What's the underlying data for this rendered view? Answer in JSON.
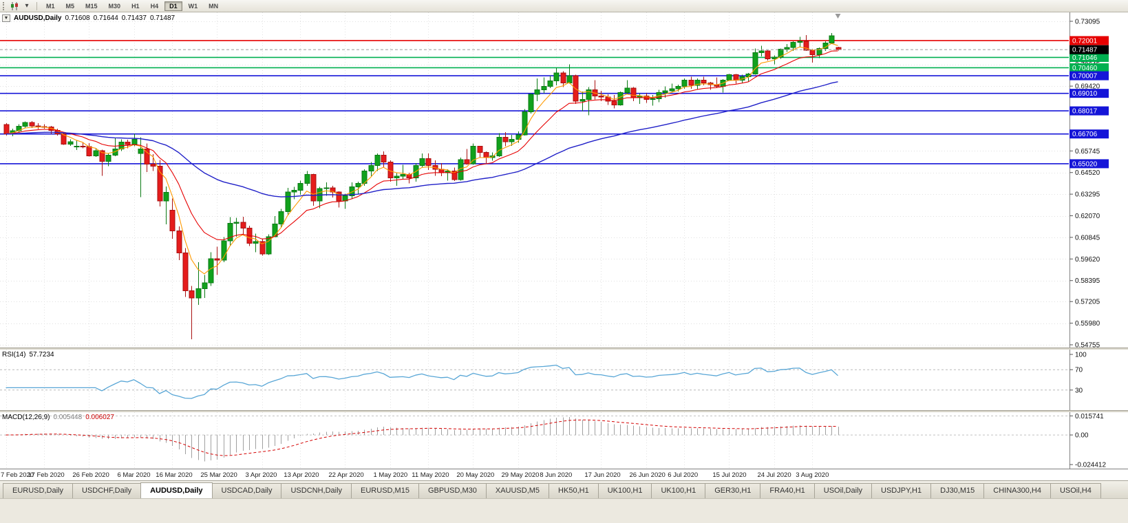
{
  "toolbar": {
    "icons": [
      "candlestick-chart-icon",
      "chart-dropdown-icon"
    ],
    "timeframes": [
      {
        "label": "M1",
        "active": false
      },
      {
        "label": "M5",
        "active": false
      },
      {
        "label": "M15",
        "active": false
      },
      {
        "label": "M30",
        "active": false
      },
      {
        "label": "H1",
        "active": false
      },
      {
        "label": "H4",
        "active": false
      },
      {
        "label": "D1",
        "active": true
      },
      {
        "label": "W1",
        "active": false
      },
      {
        "label": "MN",
        "active": false
      }
    ]
  },
  "chart": {
    "collapse_glyph": "▼",
    "symbol": "AUDUSD,Daily",
    "open": "0.71608",
    "high": "0.71644",
    "low": "0.71437",
    "close": "0.71487"
  },
  "price_scale": {
    "ticks": [
      0.73095,
      0.70645,
      0.6942,
      0.65745,
      0.6452,
      0.63295,
      0.6207,
      0.60845,
      0.5962,
      0.58395,
      0.57205,
      0.5598,
      0.54755
    ],
    "current": {
      "value": 0.71487,
      "label": "0.71487",
      "box_color": "#000000"
    }
  },
  "hlines": [
    {
      "value": 0.72001,
      "label": "0.72001",
      "color": "#e60000"
    },
    {
      "value": 0.71046,
      "label": "0.71046",
      "color": "#00b050"
    },
    {
      "value": 0.7046,
      "label": "0.70460",
      "color": "#00b050"
    },
    {
      "value": 0.70007,
      "label": "0.70007",
      "color": "#1515d8"
    },
    {
      "value": 0.6901,
      "label": "0.69010",
      "color": "#1515d8"
    },
    {
      "value": 0.68017,
      "label": "0.68017",
      "color": "#1515d8"
    },
    {
      "value": 0.66706,
      "label": "0.66706",
      "color": "#1515d8"
    },
    {
      "value": 0.6502,
      "label": "0.65020",
      "color": "#1515d8"
    }
  ],
  "rsi": {
    "name": "RSI(14)",
    "value": "57.7234",
    "period": 14,
    "levels": [
      70,
      30
    ],
    "scale_labels": [
      {
        "v": 100,
        "t": "100"
      },
      {
        "v": 70,
        "t": "70"
      },
      {
        "v": 30,
        "t": "30"
      }
    ],
    "line_color": "#58a6d6"
  },
  "macd": {
    "name": "MACD(12,26,9)",
    "value_main": "0.005448",
    "value_signal": "0.006027",
    "fast": 12,
    "slow": 26,
    "signal": 9,
    "scale_labels": [
      {
        "v": 0.015741,
        "t": "0.015741"
      },
      {
        "v": 0,
        "t": "0.00"
      },
      {
        "v": -0.024412,
        "t": "-0.024412"
      }
    ],
    "hist_color": "#a0a0a0",
    "signal_color": "#d40000"
  },
  "x_labels": [
    {
      "i": 0,
      "text": "7 Feb 2020"
    },
    {
      "i": 6,
      "text": "17 Feb 2020"
    },
    {
      "i": 13,
      "text": "26 Feb 2020"
    },
    {
      "i": 20,
      "text": "6 Mar 2020"
    },
    {
      "i": 26,
      "text": "16 Mar 2020"
    },
    {
      "i": 33,
      "text": "25 Mar 2020"
    },
    {
      "i": 40,
      "text": "3 Apr 2020"
    },
    {
      "i": 46,
      "text": "13 Apr 2020"
    },
    {
      "i": 53,
      "text": "22 Apr 2020"
    },
    {
      "i": 60,
      "text": "1 May 2020"
    },
    {
      "i": 66,
      "text": "11 May 2020"
    },
    {
      "i": 73,
      "text": "20 May 2020"
    },
    {
      "i": 80,
      "text": "29 May 2020"
    },
    {
      "i": 86,
      "text": "8 Jun 2020"
    },
    {
      "i": 93,
      "text": "17 Jun 2020"
    },
    {
      "i": 100,
      "text": "26 Jun 2020"
    },
    {
      "i": 106,
      "text": "6 Jul 2020"
    },
    {
      "i": 113,
      "text": "15 Jul 2020"
    },
    {
      "i": 120,
      "text": "24 Jul 2020"
    },
    {
      "i": 126,
      "text": "3 Aug 2020"
    }
  ],
  "tabs": [
    {
      "label": "EURUSD,Daily",
      "active": false
    },
    {
      "label": "USDCHF,Daily",
      "active": false
    },
    {
      "label": "AUDUSD,Daily",
      "active": true
    },
    {
      "label": "USDCAD,Daily",
      "active": false
    },
    {
      "label": "USDCNH,Daily",
      "active": false
    },
    {
      "label": "EURUSD,M15",
      "active": false
    },
    {
      "label": "GBPUSD,M30",
      "active": false
    },
    {
      "label": "XAUUSD,M5",
      "active": false
    },
    {
      "label": "HK50,H1",
      "active": false
    },
    {
      "label": "UK100,H1",
      "active": false
    },
    {
      "label": "UK100,H1",
      "active": false
    },
    {
      "label": "GER30,H1",
      "active": false
    },
    {
      "label": "FRA40,H1",
      "active": false
    },
    {
      "label": "USOil,Daily",
      "active": false
    },
    {
      "label": "USDJPY,H1",
      "active": false
    },
    {
      "label": "DJ30,M15",
      "active": false
    },
    {
      "label": "CHINA300,H4",
      "active": false
    },
    {
      "label": "USOil,H4",
      "active": false
    }
  ],
  "chart_data": {
    "type": "candlestick",
    "symbol": "AUDUSD",
    "timeframe": "Daily",
    "title": "AUDUSD,Daily 0.71608 0.71644 0.71437 0.71487",
    "y_axis_range": [
      0.546,
      0.736
    ],
    "colors": {
      "up": "#11a11c",
      "up_border": "#0b7a14",
      "down": "#e51c1c",
      "down_border": "#a81010"
    },
    "moving_averages": [
      {
        "name": "fast-ma",
        "period": 5,
        "color": "#ff9a00",
        "width": 1.1
      },
      {
        "name": "medium-ma",
        "period": 13,
        "color": "#e60000",
        "width": 1.1
      },
      {
        "name": "slow-ma",
        "period": 50,
        "color": "#2020c8",
        "width": 1.4
      }
    ],
    "candles": [
      [
        0.6725,
        0.6732,
        0.6662,
        0.6671
      ],
      [
        0.6671,
        0.6701,
        0.6658,
        0.6689
      ],
      [
        0.6689,
        0.6726,
        0.6681,
        0.6714
      ],
      [
        0.6714,
        0.6741,
        0.6706,
        0.6735
      ],
      [
        0.6735,
        0.6744,
        0.6704,
        0.6716
      ],
      [
        0.6716,
        0.6731,
        0.6699,
        0.6713
      ],
      [
        0.6713,
        0.6726,
        0.67,
        0.671
      ],
      [
        0.671,
        0.6716,
        0.6672,
        0.669
      ],
      [
        0.669,
        0.6701,
        0.6661,
        0.6671
      ],
      [
        0.6671,
        0.6676,
        0.6608,
        0.6613
      ],
      [
        0.6613,
        0.6641,
        0.6604,
        0.6626
      ],
      [
        0.66,
        0.6632,
        0.658,
        0.6601
      ],
      [
        0.6601,
        0.6624,
        0.6589,
        0.6599
      ],
      [
        0.6599,
        0.6619,
        0.6542,
        0.6546
      ],
      [
        0.6546,
        0.6591,
        0.654,
        0.6576
      ],
      [
        0.6576,
        0.6581,
        0.6434,
        0.6515
      ],
      [
        0.6515,
        0.6562,
        0.6489,
        0.6551
      ],
      [
        0.6551,
        0.6646,
        0.6544,
        0.6586
      ],
      [
        0.6586,
        0.6641,
        0.6574,
        0.6624
      ],
      [
        0.6624,
        0.6639,
        0.6589,
        0.6611
      ],
      [
        0.6611,
        0.6671,
        0.6601,
        0.6641
      ],
      [
        0.656,
        0.6652,
        0.6313,
        0.6585
      ],
      [
        0.6585,
        0.6616,
        0.6454,
        0.6499
      ],
      [
        0.6499,
        0.6556,
        0.6461,
        0.6489
      ],
      [
        0.6489,
        0.6524,
        0.6259,
        0.6291
      ],
      [
        0.6291,
        0.6372,
        0.6159,
        0.6339
      ],
      [
        0.6239,
        0.6304,
        0.6076,
        0.6121
      ],
      [
        0.6121,
        0.6146,
        0.5956,
        0.5996
      ],
      [
        0.5996,
        0.6024,
        0.5746,
        0.5781
      ],
      [
        0.5781,
        0.5809,
        0.5506,
        0.5741
      ],
      [
        0.5741,
        0.5944,
        0.5701,
        0.5794
      ],
      [
        0.5794,
        0.5871,
        0.5741,
        0.5826
      ],
      [
        0.5826,
        0.6001,
        0.5809,
        0.5964
      ],
      [
        0.5964,
        0.6031,
        0.5871,
        0.5956
      ],
      [
        0.5956,
        0.6086,
        0.5944,
        0.6064
      ],
      [
        0.6064,
        0.6199,
        0.6036,
        0.6164
      ],
      [
        0.6164,
        0.6196,
        0.6089,
        0.6171
      ],
      [
        0.6171,
        0.6201,
        0.6101,
        0.6136
      ],
      [
        0.6136,
        0.6151,
        0.6036,
        0.6051
      ],
      [
        0.6051,
        0.6106,
        0.6001,
        0.6061
      ],
      [
        0.6061,
        0.6076,
        0.5981,
        0.5991
      ],
      [
        0.5991,
        0.6101,
        0.5984,
        0.6089
      ],
      [
        0.6089,
        0.6206,
        0.6086,
        0.6161
      ],
      [
        0.6161,
        0.6246,
        0.6139,
        0.6231
      ],
      [
        0.6231,
        0.6366,
        0.6211,
        0.6341
      ],
      [
        0.6341,
        0.6371,
        0.6301,
        0.6351
      ],
      [
        0.6351,
        0.6406,
        0.6326,
        0.6391
      ],
      [
        0.6391,
        0.6461,
        0.6376,
        0.6441
      ],
      [
        0.6441,
        0.6446,
        0.6264,
        0.6291
      ],
      [
        0.6291,
        0.6371,
        0.6251,
        0.6361
      ],
      [
        0.6361,
        0.6396,
        0.6321,
        0.6366
      ],
      [
        0.6366,
        0.6376,
        0.6311,
        0.6341
      ],
      [
        0.6341,
        0.6346,
        0.6254,
        0.6291
      ],
      [
        0.6291,
        0.6331,
        0.6246,
        0.6321
      ],
      [
        0.6321,
        0.6396,
        0.6301,
        0.6371
      ],
      [
        0.6371,
        0.6401,
        0.6331,
        0.6391
      ],
      [
        0.6391,
        0.6471,
        0.6376,
        0.6461
      ],
      [
        0.6461,
        0.6511,
        0.6431,
        0.6491
      ],
      [
        0.6491,
        0.6561,
        0.6461,
        0.6551
      ],
      [
        0.6551,
        0.6571,
        0.6481,
        0.6511
      ],
      [
        0.6511,
        0.6521,
        0.6401,
        0.6421
      ],
      [
        0.6421,
        0.6451,
        0.6376,
        0.6431
      ],
      [
        0.6431,
        0.6496,
        0.6414,
        0.6441
      ],
      [
        0.6441,
        0.6451,
        0.6391,
        0.6421
      ],
      [
        0.6421,
        0.6506,
        0.6401,
        0.6491
      ],
      [
        0.6491,
        0.6561,
        0.6481,
        0.6531
      ],
      [
        0.6531,
        0.6561,
        0.6466,
        0.6491
      ],
      [
        0.6491,
        0.6521,
        0.6434,
        0.6471
      ],
      [
        0.6471,
        0.6506,
        0.6431,
        0.6451
      ],
      [
        0.6451,
        0.6471,
        0.6406,
        0.6461
      ],
      [
        0.6461,
        0.6481,
        0.6404,
        0.6411
      ],
      [
        0.6411,
        0.6536,
        0.6406,
        0.6526
      ],
      [
        0.6526,
        0.6586,
        0.6496,
        0.6501
      ],
      [
        0.6501,
        0.6616,
        0.6496,
        0.6601
      ],
      [
        0.6601,
        0.6604,
        0.6534,
        0.6566
      ],
      [
        0.6566,
        0.6571,
        0.6506,
        0.6536
      ],
      [
        0.6536,
        0.6566,
        0.6519,
        0.6546
      ],
      [
        0.6546,
        0.6676,
        0.6541,
        0.6651
      ],
      [
        0.6651,
        0.6681,
        0.6601,
        0.6626
      ],
      [
        0.6626,
        0.6666,
        0.6604,
        0.6641
      ],
      [
        0.6641,
        0.6686,
        0.6621,
        0.6666
      ],
      [
        0.6666,
        0.6811,
        0.6661,
        0.6796
      ],
      [
        0.6796,
        0.6901,
        0.6786,
        0.6896
      ],
      [
        0.6896,
        0.6986,
        0.6856,
        0.6921
      ],
      [
        0.6921,
        0.6991,
        0.6901,
        0.6941
      ],
      [
        0.6941,
        0.7001,
        0.6931,
        0.6971
      ],
      [
        0.6971,
        0.7046,
        0.6946,
        0.7016
      ],
      [
        0.7016,
        0.7026,
        0.6936,
        0.6961
      ],
      [
        0.6961,
        0.7066,
        0.6956,
        0.7001
      ],
      [
        0.7001,
        0.7006,
        0.6841,
        0.6856
      ],
      [
        0.6856,
        0.6911,
        0.6801,
        0.6866
      ],
      [
        0.6866,
        0.6936,
        0.6776,
        0.6921
      ],
      [
        0.6921,
        0.6976,
        0.6866,
        0.6886
      ],
      [
        0.6886,
        0.6916,
        0.6856,
        0.6881
      ],
      [
        0.6881,
        0.6896,
        0.6836,
        0.6856
      ],
      [
        0.6856,
        0.6891,
        0.6816,
        0.6836
      ],
      [
        0.6836,
        0.6911,
        0.6831,
        0.6906
      ],
      [
        0.6906,
        0.6976,
        0.6896,
        0.6931
      ],
      [
        0.6931,
        0.6936,
        0.6856,
        0.6876
      ],
      [
        0.6876,
        0.6901,
        0.6841,
        0.6886
      ],
      [
        0.6886,
        0.6901,
        0.6846,
        0.6866
      ],
      [
        0.6866,
        0.6891,
        0.6831,
        0.6871
      ],
      [
        0.6871,
        0.6921,
        0.6851,
        0.6906
      ],
      [
        0.6906,
        0.6941,
        0.6876,
        0.6916
      ],
      [
        0.6916,
        0.6956,
        0.6906,
        0.6926
      ],
      [
        0.6926,
        0.6951,
        0.6911,
        0.6941
      ],
      [
        0.6941,
        0.6986,
        0.6926,
        0.6976
      ],
      [
        0.6976,
        0.6996,
        0.6926,
        0.6946
      ],
      [
        0.6946,
        0.6986,
        0.6921,
        0.6976
      ],
      [
        0.6976,
        0.6996,
        0.6946,
        0.6961
      ],
      [
        0.6961,
        0.6966,
        0.6921,
        0.6951
      ],
      [
        0.6951,
        0.6991,
        0.6931,
        0.6941
      ],
      [
        0.6941,
        0.6981,
        0.6906,
        0.6976
      ],
      [
        0.6976,
        0.7011,
        0.6971,
        0.7006
      ],
      [
        0.7006,
        0.7011,
        0.6956,
        0.6976
      ],
      [
        0.6976,
        0.7006,
        0.6961,
        0.6996
      ],
      [
        0.6996,
        0.7016,
        0.6966,
        0.7011
      ],
      [
        0.7011,
        0.7156,
        0.7006,
        0.7131
      ],
      [
        0.7131,
        0.7171,
        0.7111,
        0.7141
      ],
      [
        0.7141,
        0.7146,
        0.7086,
        0.7096
      ],
      [
        0.7096,
        0.7116,
        0.7066,
        0.7106
      ],
      [
        0.7106,
        0.7156,
        0.7096,
        0.7151
      ],
      [
        0.7151,
        0.7181,
        0.7136,
        0.7161
      ],
      [
        0.7161,
        0.7196,
        0.7141,
        0.7191
      ],
      [
        0.7191,
        0.7221,
        0.7161,
        0.7196
      ],
      [
        0.7196,
        0.7231,
        0.7141,
        0.7146
      ],
      [
        0.7146,
        0.7151,
        0.7076,
        0.7121
      ],
      [
        0.7121,
        0.7161,
        0.7101,
        0.7156
      ],
      [
        0.7156,
        0.7196,
        0.7141,
        0.7186
      ],
      [
        0.7186,
        0.7242,
        0.7181,
        0.7228
      ],
      [
        0.71608,
        0.71644,
        0.71437,
        0.71487
      ]
    ]
  }
}
